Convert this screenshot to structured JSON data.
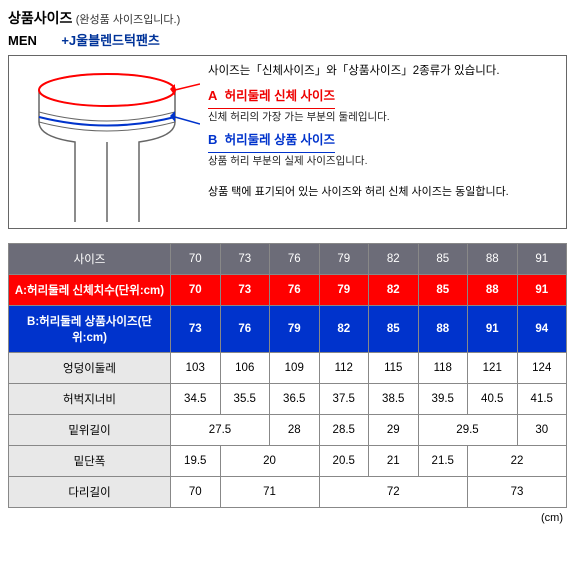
{
  "header": {
    "title_main": "상품사이즈",
    "title_sub": "(완성품 사이즈입니다.)",
    "men": "MEN",
    "product": "+J울블렌드턱팬츠"
  },
  "info": {
    "intro": "사이즈는「신체사이즈」와「상품사이즈」2종류가 있습니다.",
    "a_prefix": "A",
    "a_label": "허리둘레 신체 사이즈",
    "a_desc": "신체 허리의 가장 가는 부분의 둘레입니다.",
    "b_prefix": "B",
    "b_label": "허리둘레 상품 사이즈",
    "b_desc": "상품 허리 부분의 실제 사이즈입니다.",
    "note": "상품 택에 표기되어 있는 사이즈와 허리 신체 사이즈는 동일합니다."
  },
  "table": {
    "size_label": "사이즈",
    "sizes": [
      "70",
      "73",
      "76",
      "79",
      "82",
      "85",
      "88",
      "91"
    ],
    "row_a_label": "A:허리둘레 신체치수(단위:cm)",
    "row_a": [
      "70",
      "73",
      "76",
      "79",
      "82",
      "85",
      "88",
      "91"
    ],
    "row_b_label": "B:허리둘레 상품사이즈(단위:cm)",
    "row_b": [
      "73",
      "76",
      "79",
      "82",
      "85",
      "88",
      "91",
      "94"
    ],
    "rows": [
      {
        "label": "엉덩이둘레",
        "cells": [
          {
            "v": "103",
            "span": 1
          },
          {
            "v": "106",
            "span": 1
          },
          {
            "v": "109",
            "span": 1
          },
          {
            "v": "112",
            "span": 1
          },
          {
            "v": "115",
            "span": 1
          },
          {
            "v": "118",
            "span": 1
          },
          {
            "v": "121",
            "span": 1
          },
          {
            "v": "124",
            "span": 1
          }
        ]
      },
      {
        "label": "허벅지너비",
        "cells": [
          {
            "v": "34.5",
            "span": 1
          },
          {
            "v": "35.5",
            "span": 1
          },
          {
            "v": "36.5",
            "span": 1
          },
          {
            "v": "37.5",
            "span": 1
          },
          {
            "v": "38.5",
            "span": 1
          },
          {
            "v": "39.5",
            "span": 1
          },
          {
            "v": "40.5",
            "span": 1
          },
          {
            "v": "41.5",
            "span": 1
          }
        ]
      },
      {
        "label": "밑위길이",
        "cells": [
          {
            "v": "27.5",
            "span": 2
          },
          {
            "v": "28",
            "span": 1
          },
          {
            "v": "28.5",
            "span": 1
          },
          {
            "v": "29",
            "span": 1
          },
          {
            "v": "29.5",
            "span": 2
          },
          {
            "v": "30",
            "span": 1
          }
        ]
      },
      {
        "label": "밑단폭",
        "cells": [
          {
            "v": "19.5",
            "span": 1
          },
          {
            "v": "20",
            "span": 2
          },
          {
            "v": "20.5",
            "span": 1
          },
          {
            "v": "21",
            "span": 1
          },
          {
            "v": "21.5",
            "span": 1
          },
          {
            "v": "22",
            "span": 2
          }
        ]
      },
      {
        "label": "다리길이",
        "cells": [
          {
            "v": "70",
            "span": 1
          },
          {
            "v": "71",
            "span": 2
          },
          {
            "v": "72",
            "span": 3
          },
          {
            "v": "73",
            "span": 2
          }
        ]
      }
    ]
  },
  "unit": "(cm)",
  "colors": {
    "header_bg": "#6c6c78",
    "row_a_bg": "#ff0000",
    "row_b_bg": "#0033cc",
    "gray_bg": "#e8e8e8",
    "border": "#888888"
  }
}
